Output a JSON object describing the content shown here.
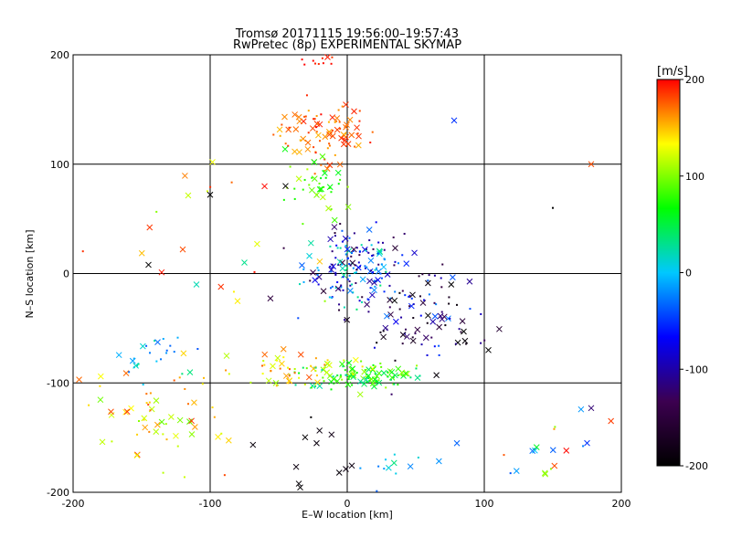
{
  "chart_data": {
    "type": "scatter",
    "title_line1": "Tromsø 20171115 19:56:00–19:57:43",
    "title_line2": "RwPretec (8p) EXPERIMENTAL SKYMAP",
    "xlabel": "E–W location [km]",
    "ylabel": "N–S location [km]",
    "xlim": [
      -200,
      200
    ],
    "ylim": [
      -200,
      200
    ],
    "xticks": [
      -200,
      -100,
      0,
      100,
      200
    ],
    "yticks": [
      -200,
      -100,
      0,
      100,
      200
    ],
    "grid": true,
    "colorbar": {
      "label": "[m/s]",
      "min": -200,
      "max": 200,
      "ticks": [
        200,
        100,
        0,
        -100,
        -200
      ],
      "colors": [
        "#000000",
        "#3c0050",
        "#0000ff",
        "#00c8ff",
        "#00ff00",
        "#ffff00",
        "#ff0000"
      ]
    },
    "markers": {
      "cross": "larger detections",
      "dot": "smaller detections"
    },
    "clusters": [
      {
        "cx": -18,
        "cy": 128,
        "sx": 18,
        "sy": 14,
        "n": 90,
        "vmin": 150,
        "vmax": 200,
        "cross": 0.45
      },
      {
        "cx": -22,
        "cy": 196,
        "sx": 10,
        "sy": 4,
        "n": 12,
        "vmin": 170,
        "vmax": 200,
        "cross": 0.3
      },
      {
        "cx": -20,
        "cy": 80,
        "sx": 12,
        "sy": 15,
        "n": 40,
        "vmin": 60,
        "vmax": 120,
        "cross": 0.35
      },
      {
        "cx": 5,
        "cy": 5,
        "sx": 18,
        "sy": 18,
        "n": 170,
        "vmin": -160,
        "vmax": 40,
        "cross": 0.25
      },
      {
        "cx": 45,
        "cy": -30,
        "sx": 22,
        "sy": 20,
        "n": 70,
        "vmin": -200,
        "vmax": -20,
        "cross": 0.35
      },
      {
        "cx": 10,
        "cy": -93,
        "sx": 25,
        "sy": 6,
        "n": 110,
        "vmin": 20,
        "vmax": 110,
        "cross": 0.45
      },
      {
        "cx": -40,
        "cy": -88,
        "sx": 25,
        "sy": 8,
        "n": 50,
        "vmin": 110,
        "vmax": 180,
        "cross": 0.35
      },
      {
        "cx": -140,
        "cy": -130,
        "sx": 25,
        "sy": 25,
        "n": 60,
        "vmin": 90,
        "vmax": 190,
        "cross": 0.45
      },
      {
        "cx": -140,
        "cy": -75,
        "sx": 15,
        "sy": 12,
        "n": 25,
        "vmin": -40,
        "vmax": 40,
        "cross": 0.35
      },
      {
        "cx": -30,
        "cy": -165,
        "sx": 20,
        "sy": 20,
        "n": 14,
        "vmin": -200,
        "vmax": -180,
        "cross": 0.8
      },
      {
        "cx": 140,
        "cy": -165,
        "sx": 20,
        "sy": 25,
        "n": 20,
        "vmin": -40,
        "vmax": 200,
        "cross": 0.5
      },
      {
        "cx": 40,
        "cy": -175,
        "sx": 15,
        "sy": 15,
        "n": 14,
        "vmin": -40,
        "vmax": 40,
        "cross": 0.4
      },
      {
        "cx": 70,
        "cy": -50,
        "sx": 25,
        "sy": 25,
        "n": 25,
        "vmin": -200,
        "vmax": -100,
        "cross": 0.5
      },
      {
        "cx": -80,
        "cy": 30,
        "sx": 40,
        "sy": 40,
        "n": 20,
        "vmin": 100,
        "vmax": 200,
        "cross": 0.4
      }
    ],
    "points": [
      {
        "x": -145,
        "y": 8,
        "v": -200,
        "m": "x"
      },
      {
        "x": -100,
        "y": 72,
        "v": -200,
        "m": "x"
      },
      {
        "x": 78,
        "y": 140,
        "v": -50,
        "m": "x"
      },
      {
        "x": 178,
        "y": 100,
        "v": 180,
        "m": "x"
      },
      {
        "x": -120,
        "y": 22,
        "v": 180,
        "m": "x"
      },
      {
        "x": -45,
        "y": 80,
        "v": -200,
        "m": "x"
      },
      {
        "x": 150,
        "y": 60,
        "v": -200,
        "m": "."
      },
      {
        "x": 103,
        "y": -70,
        "v": -200,
        "m": "x"
      },
      {
        "x": 178,
        "y": -123,
        "v": -120,
        "m": "x"
      },
      {
        "x": 175,
        "y": -155,
        "v": -50,
        "m": "x"
      },
      {
        "x": -110,
        "y": -10,
        "v": 20,
        "m": "x"
      },
      {
        "x": -75,
        "y": 10,
        "v": 30,
        "m": "x"
      },
      {
        "x": 85,
        "y": -53,
        "v": -200,
        "m": "x"
      }
    ]
  }
}
